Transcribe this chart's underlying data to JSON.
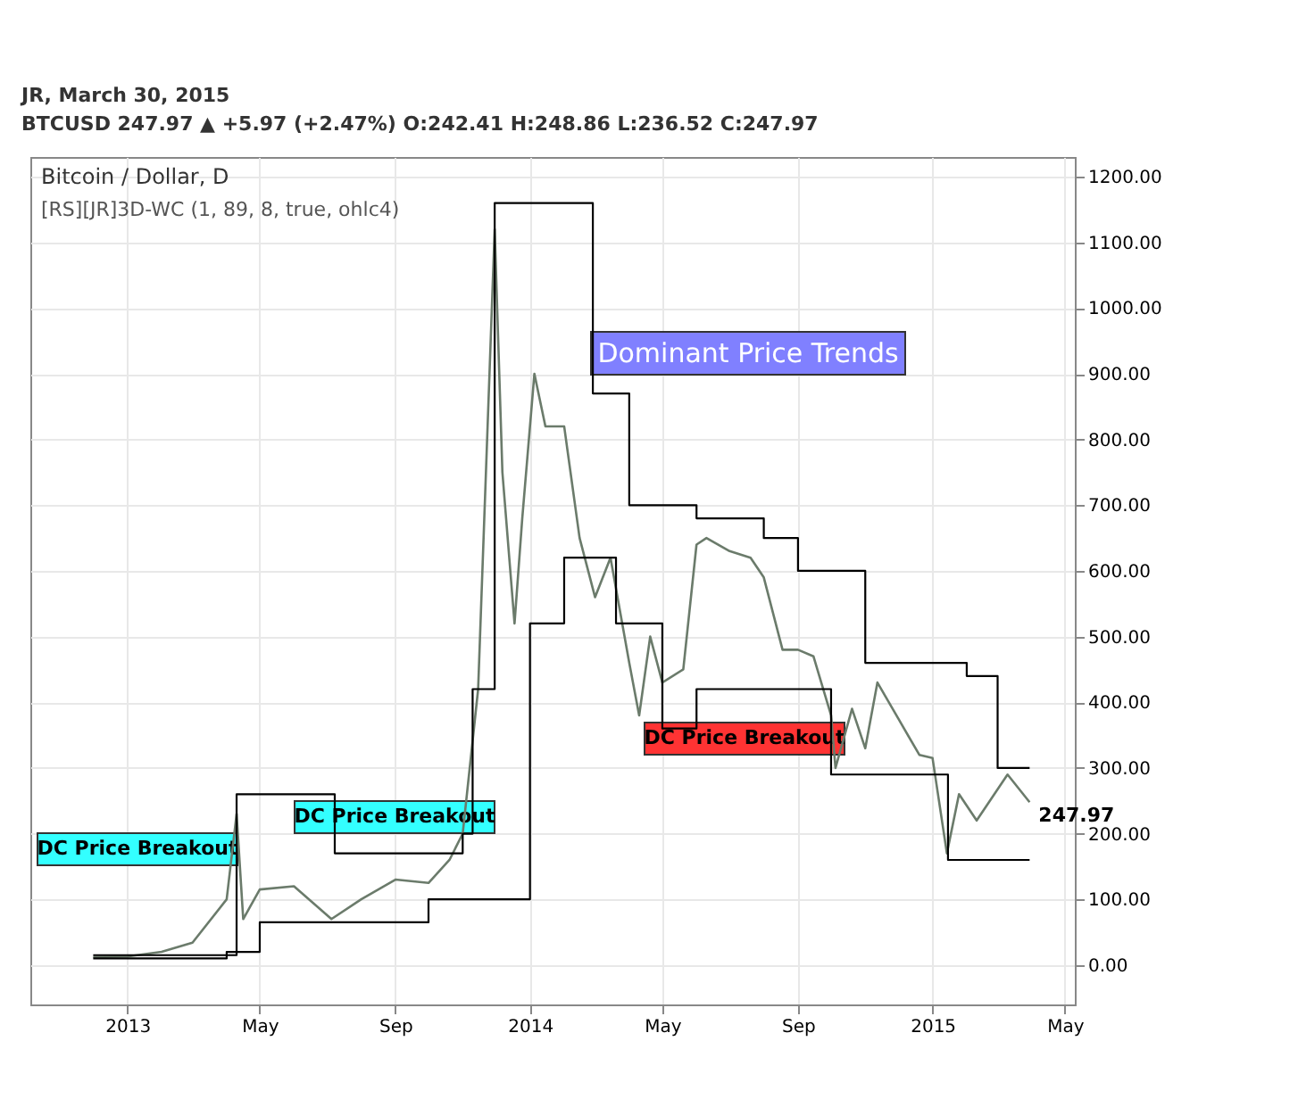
{
  "chart_data": {
    "type": "line",
    "title": "Bitcoin / Dollar, D",
    "subtitle": "[RS][JR]3D-WC (1, 89, 8, true, ohlc4)",
    "annotations": [
      "JR, March 30, 2015",
      "BTCUSD  247.97 ▲ +5.97 (+2.47%)  O:242.41  H:248.86  L:236.52  C:247.97",
      "Dominant Price Trends",
      "DC Price Breakout",
      "DC Price Breakout",
      "DC Price Breakout",
      {
        "text": "247.97",
        "x": "2015-03-30",
        "y": 247.97
      }
    ],
    "xlim": [
      "2012-10-05",
      "2015-05-10"
    ],
    "xticks": [
      {
        "value": "2013-01-01",
        "label": "2013"
      },
      {
        "value": "2013-05-01",
        "label": "May"
      },
      {
        "value": "2013-09-01",
        "label": "Sep"
      },
      {
        "value": "2014-01-01",
        "label": "2014"
      },
      {
        "value": "2014-05-01",
        "label": "May"
      },
      {
        "value": "2014-09-01",
        "label": "Sep"
      },
      {
        "value": "2015-01-01",
        "label": "2015"
      },
      {
        "value": "2015-05-01",
        "label": "May"
      }
    ],
    "ylim": [
      -60,
      1230
    ],
    "yticks": [
      {
        "value": 0,
        "label": "0.00"
      },
      {
        "value": 100,
        "label": "100.00"
      },
      {
        "value": 200,
        "label": "200.00"
      },
      {
        "value": 300,
        "label": "300.00"
      },
      {
        "value": 400,
        "label": "400.00"
      },
      {
        "value": 500,
        "label": "500.00"
      },
      {
        "value": 600,
        "label": "600.00"
      },
      {
        "value": 700,
        "label": "700.00"
      },
      {
        "value": 800,
        "label": "800.00"
      },
      {
        "value": 900,
        "label": "900.00"
      },
      {
        "value": 1000,
        "label": "1000.00"
      },
      {
        "value": 1100,
        "label": "1100.00"
      },
      {
        "value": 1200,
        "label": "1200.00"
      }
    ],
    "grid": true,
    "legend": false,
    "series": [
      {
        "color": "#6b7b6b",
        "x": [
          "2012-12-01",
          "2013-01-01",
          "2013-02-01",
          "2013-03-01",
          "2013-04-01",
          "2013-04-10",
          "2013-04-16",
          "2013-05-01",
          "2013-06-01",
          "2013-07-05",
          "2013-08-01",
          "2013-09-01",
          "2013-10-01",
          "2013-10-20",
          "2013-11-01",
          "2013-11-15",
          "2013-11-30",
          "2013-12-07",
          "2013-12-18",
          "2013-12-25",
          "2014-01-05",
          "2014-01-15",
          "2014-02-01",
          "2014-02-15",
          "2014-03-01",
          "2014-03-15",
          "2014-04-01",
          "2014-04-10",
          "2014-04-20",
          "2014-05-01",
          "2014-05-20",
          "2014-06-01",
          "2014-06-10",
          "2014-07-01",
          "2014-07-20",
          "2014-08-01",
          "2014-08-18",
          "2014-09-01",
          "2014-09-15",
          "2014-10-01",
          "2014-10-05",
          "2014-10-20",
          "2014-11-01",
          "2014-11-12",
          "2014-12-01",
          "2014-12-20",
          "2015-01-01",
          "2015-01-14",
          "2015-01-25",
          "2015-02-10",
          "2015-03-10",
          "2015-03-30"
        ],
        "values": [
          12,
          13,
          20,
          34,
          100,
          230,
          70,
          115,
          120,
          70,
          100,
          130,
          125,
          160,
          200,
          420,
          1120,
          750,
          520,
          680,
          900,
          820,
          820,
          650,
          560,
          620,
          460,
          380,
          500,
          430,
          450,
          640,
          650,
          630,
          620,
          590,
          480,
          480,
          470,
          380,
          300,
          390,
          330,
          430,
          375,
          320,
          315,
          170,
          260,
          220,
          290,
          247.97
        ]
      },
      {
        "type": "step",
        "color": "#000000",
        "x": [
          "2012-12-01",
          "2013-04-10",
          "2013-07-08",
          "2013-11-01",
          "2013-11-10",
          "2013-11-30",
          "2014-02-27",
          "2014-04-01",
          "2014-06-01",
          "2014-08-01",
          "2014-09-01",
          "2014-11-01",
          "2015-02-01",
          "2015-03-01",
          "2015-03-30"
        ],
        "values": [
          15,
          260,
          170,
          200,
          420,
          1160,
          870,
          700,
          680,
          650,
          600,
          460,
          440,
          300,
          300
        ]
      },
      {
        "type": "step",
        "color": "#000000",
        "x": [
          "2012-12-01",
          "2013-04-01",
          "2013-05-01",
          "2013-10-01",
          "2014-01-01",
          "2014-02-01",
          "2014-03-20",
          "2014-05-01",
          "2014-06-01",
          "2014-10-01",
          "2015-01-15",
          "2015-03-30"
        ],
        "values": [
          10,
          20,
          65,
          100,
          520,
          620,
          520,
          360,
          420,
          290,
          160,
          160
        ]
      }
    ]
  }
}
